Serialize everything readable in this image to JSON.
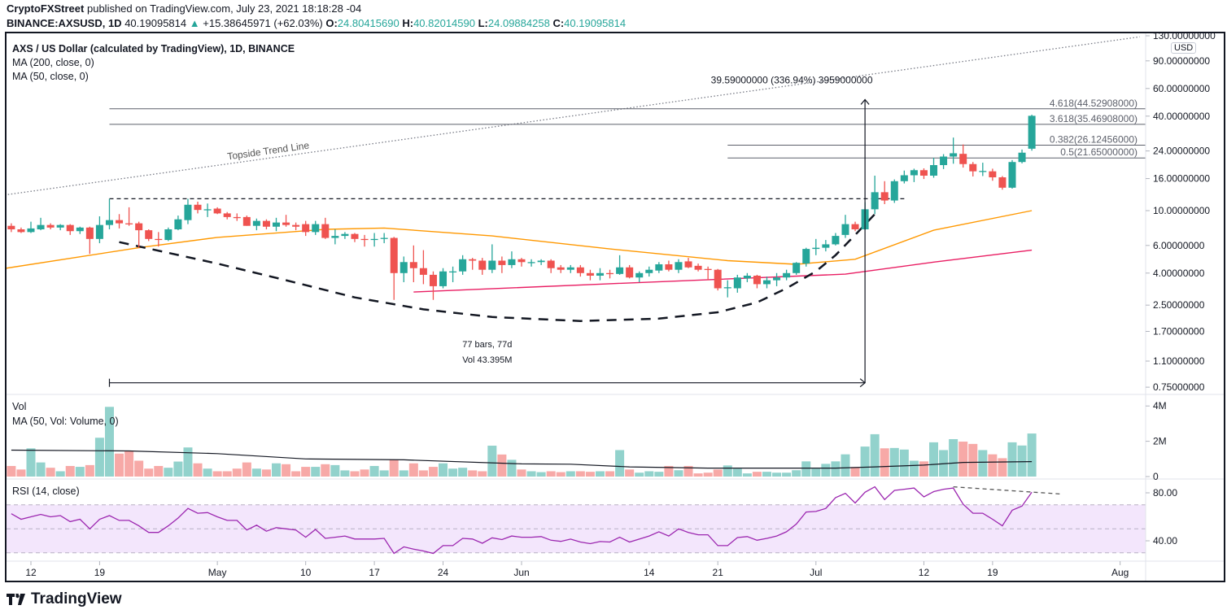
{
  "header": {
    "publisher": "CryptoFXStreet",
    "published_text": "published on TradingView.com, July 23, 2021 18:18:28 -04",
    "symbol": "BINANCE:AXSUSD, 1D",
    "last": "40.19095814",
    "change": "+15.38645971 (+62.03%)",
    "o_label": "O:",
    "o": "24.80415690",
    "h_label": "H:",
    "h": "40.82014590",
    "l_label": "L:",
    "l": "24.09884258",
    "c_label": "C:",
    "c": "40.19095814",
    "up_icon": "triangle-up-icon"
  },
  "legend": {
    "title": "AXS / US Dollar (calculated by TradingView), 1D, BINANCE",
    "ma200": "MA (200, close, 0)",
    "ma50": "MA (50, close, 0)",
    "vol": "Vol",
    "vol_ma": "MA (50, Vol: Volume, 0)",
    "rsi": "RSI (14, close)"
  },
  "currency_badge": "USD",
  "logo_text": "TradingView",
  "colors": {
    "up": "#26a69a",
    "down": "#ef5350",
    "vol_up": "#92d2cc",
    "vol_down": "#f7a9a7",
    "ma50": "#ff9800",
    "ma200": "#e91e63",
    "rsi": "#9c27b0",
    "rsi_band": "#f3e6fc"
  },
  "chart_data": {
    "type": "candlestick",
    "price_scale": "log",
    "price_axis_ticks": [
      {
        "v": 130,
        "label": "130.00000000"
      },
      {
        "v": 90,
        "label": "90.00000000"
      },
      {
        "v": 60,
        "label": "60.00000000"
      },
      {
        "v": 40,
        "label": "40.00000000"
      },
      {
        "v": 24,
        "label": "24.00000000"
      },
      {
        "v": 16,
        "label": "16.00000000"
      },
      {
        "v": 10,
        "label": "10.00000000"
      },
      {
        "v": 6,
        "label": "6.00000000"
      },
      {
        "v": 4,
        "label": "4.00000000"
      },
      {
        "v": 2.5,
        "label": "2.50000000"
      },
      {
        "v": 1.7,
        "label": "1.70000000"
      },
      {
        "v": 1.1,
        "label": "1.10000000"
      },
      {
        "v": 0.75,
        "label": "0.75000000"
      }
    ],
    "x_ticks": [
      {
        "date": "2021-04-12",
        "label": "12"
      },
      {
        "date": "2021-04-19",
        "label": "19"
      },
      {
        "date": "2021-05-01",
        "label": "May"
      },
      {
        "date": "2021-05-10",
        "label": "10"
      },
      {
        "date": "2021-05-17",
        "label": "17"
      },
      {
        "date": "2021-05-24",
        "label": "24"
      },
      {
        "date": "2021-06-01",
        "label": "Jun"
      },
      {
        "date": "2021-06-14",
        "label": "14"
      },
      {
        "date": "2021-06-21",
        "label": "21"
      },
      {
        "date": "2021-07-01",
        "label": "Jul"
      },
      {
        "date": "2021-07-12",
        "label": "12"
      },
      {
        "date": "2021-07-19",
        "label": "19"
      },
      {
        "date": "2021-08-01",
        "label": "Aug"
      }
    ],
    "candles_columns": [
      "date",
      "open",
      "high",
      "low",
      "close"
    ],
    "candles": [
      [
        "2021-04-10",
        8.0,
        8.3,
        7.3,
        7.6
      ],
      [
        "2021-04-11",
        7.6,
        7.8,
        7.2,
        7.3
      ],
      [
        "2021-04-12",
        7.3,
        8.5,
        7.2,
        7.7
      ],
      [
        "2021-04-13",
        7.6,
        9.0,
        7.5,
        8.1
      ],
      [
        "2021-04-14",
        8.1,
        8.3,
        7.6,
        7.8
      ],
      [
        "2021-04-15",
        7.8,
        8.2,
        7.5,
        8.1
      ],
      [
        "2021-04-16",
        8.1,
        8.2,
        7.0,
        7.4
      ],
      [
        "2021-04-17",
        7.4,
        7.9,
        7.1,
        7.8
      ],
      [
        "2021-04-18",
        7.8,
        7.9,
        5.3,
        6.6
      ],
      [
        "2021-04-19",
        6.6,
        9.2,
        6.2,
        8.1
      ],
      [
        "2021-04-20",
        8.1,
        11.9,
        7.6,
        8.7
      ],
      [
        "2021-04-21",
        8.7,
        9.5,
        7.7,
        8.3
      ],
      [
        "2021-04-22",
        8.3,
        10.5,
        8.0,
        8.2
      ],
      [
        "2021-04-23",
        8.3,
        8.5,
        5.8,
        7.5
      ],
      [
        "2021-04-24",
        7.5,
        7.6,
        6.4,
        6.6
      ],
      [
        "2021-04-25",
        6.6,
        7.3,
        5.9,
        6.5
      ],
      [
        "2021-04-26",
        6.5,
        7.8,
        6.4,
        7.6
      ],
      [
        "2021-04-27",
        7.6,
        9.3,
        7.5,
        8.8
      ],
      [
        "2021-04-28",
        8.7,
        11.9,
        8.2,
        10.9
      ],
      [
        "2021-04-29",
        10.9,
        11.4,
        9.6,
        10.1
      ],
      [
        "2021-04-30",
        10.1,
        11.1,
        9.1,
        10.2
      ],
      [
        "2021-05-01",
        10.3,
        10.5,
        9.5,
        9.6
      ],
      [
        "2021-05-02",
        9.6,
        9.8,
        8.8,
        9.1
      ],
      [
        "2021-05-03",
        9.1,
        9.6,
        8.6,
        9.0
      ],
      [
        "2021-05-04",
        9.1,
        9.3,
        8.0,
        8.0
      ],
      [
        "2021-05-05",
        8.0,
        8.9,
        7.5,
        8.6
      ],
      [
        "2021-05-06",
        8.6,
        8.8,
        7.6,
        7.9
      ],
      [
        "2021-05-07",
        7.9,
        9.0,
        7.4,
        8.4
      ],
      [
        "2021-05-08",
        8.4,
        9.4,
        7.9,
        8.1
      ],
      [
        "2021-05-09",
        8.1,
        8.4,
        7.5,
        7.9
      ],
      [
        "2021-05-10",
        8.2,
        8.6,
        6.9,
        7.3
      ],
      [
        "2021-05-11",
        7.3,
        8.6,
        7.0,
        8.2
      ],
      [
        "2021-05-12",
        8.2,
        9.0,
        6.6,
        6.7
      ],
      [
        "2021-05-13",
        6.7,
        7.6,
        6.1,
        6.9
      ],
      [
        "2021-05-14",
        6.9,
        7.3,
        6.6,
        7.1
      ],
      [
        "2021-05-15",
        7.1,
        7.2,
        6.3,
        6.6
      ],
      [
        "2021-05-16",
        6.6,
        7.0,
        5.9,
        6.5
      ],
      [
        "2021-05-17",
        6.5,
        7.2,
        5.9,
        6.6
      ],
      [
        "2021-05-18",
        6.6,
        7.2,
        6.2,
        6.7
      ],
      [
        "2021-05-19",
        6.7,
        6.8,
        2.7,
        4.0
      ],
      [
        "2021-05-20",
        4.0,
        5.1,
        3.5,
        4.7
      ],
      [
        "2021-05-21",
        4.7,
        6.0,
        3.5,
        4.3
      ],
      [
        "2021-05-22",
        4.3,
        5.6,
        3.4,
        3.9
      ],
      [
        "2021-05-23",
        3.9,
        4.1,
        2.7,
        3.3
      ],
      [
        "2021-05-24",
        3.3,
        4.3,
        3.2,
        4.1
      ],
      [
        "2021-05-25",
        4.1,
        4.4,
        3.5,
        4.1
      ],
      [
        "2021-05-26",
        4.1,
        5.2,
        3.9,
        4.9
      ],
      [
        "2021-05-27",
        4.9,
        5.0,
        4.2,
        4.8
      ],
      [
        "2021-05-28",
        4.8,
        5.0,
        3.9,
        4.2
      ],
      [
        "2021-05-29",
        4.2,
        6.1,
        4.0,
        4.8
      ],
      [
        "2021-05-30",
        4.8,
        5.1,
        4.0,
        4.5
      ],
      [
        "2021-05-31",
        4.5,
        5.5,
        4.3,
        4.9
      ],
      [
        "2021-06-01",
        4.9,
        5.0,
        4.4,
        4.7
      ],
      [
        "2021-06-02",
        4.7,
        4.9,
        4.4,
        4.7
      ],
      [
        "2021-06-03",
        4.7,
        4.9,
        4.5,
        4.8
      ],
      [
        "2021-06-04",
        4.8,
        4.9,
        4.0,
        4.3
      ],
      [
        "2021-06-05",
        4.35,
        4.5,
        4.0,
        4.2
      ],
      [
        "2021-06-06",
        4.2,
        4.5,
        4.0,
        4.35
      ],
      [
        "2021-06-07",
        4.35,
        4.5,
        3.8,
        4.0
      ],
      [
        "2021-06-08",
        4.0,
        4.2,
        3.6,
        3.85
      ],
      [
        "2021-06-09",
        3.85,
        4.3,
        3.6,
        4.0
      ],
      [
        "2021-06-10",
        4.0,
        4.2,
        3.7,
        3.95
      ],
      [
        "2021-06-11",
        3.95,
        5.2,
        3.9,
        4.35
      ],
      [
        "2021-06-12",
        4.35,
        4.5,
        3.7,
        3.75
      ],
      [
        "2021-06-13",
        3.75,
        4.1,
        3.5,
        4.0
      ],
      [
        "2021-06-14",
        4.0,
        4.4,
        3.8,
        4.2
      ],
      [
        "2021-06-15",
        4.15,
        4.7,
        4.0,
        4.55
      ],
      [
        "2021-06-16",
        4.55,
        4.8,
        4.1,
        4.2
      ],
      [
        "2021-06-17",
        4.2,
        4.9,
        4.0,
        4.7
      ],
      [
        "2021-06-18",
        4.75,
        5.0,
        4.3,
        4.35
      ],
      [
        "2021-06-19",
        4.45,
        4.6,
        4.1,
        4.2
      ],
      [
        "2021-06-20",
        4.25,
        4.4,
        3.6,
        4.2
      ],
      [
        "2021-06-21",
        4.2,
        4.25,
        3.1,
        3.2
      ],
      [
        "2021-06-22",
        3.2,
        3.6,
        2.8,
        3.25
      ],
      [
        "2021-06-23",
        3.2,
        3.9,
        3.0,
        3.75
      ],
      [
        "2021-06-24",
        3.7,
        4.0,
        3.5,
        3.85
      ],
      [
        "2021-06-25",
        3.85,
        3.9,
        3.2,
        3.4
      ],
      [
        "2021-06-26",
        3.4,
        3.8,
        3.2,
        3.6
      ],
      [
        "2021-06-27",
        3.6,
        4.0,
        3.3,
        3.75
      ],
      [
        "2021-06-28",
        3.75,
        4.2,
        3.6,
        4.0
      ],
      [
        "2021-06-29",
        4.0,
        4.7,
        3.9,
        4.65
      ],
      [
        "2021-06-30",
        4.6,
        5.8,
        4.4,
        5.7
      ],
      [
        "2021-07-01",
        5.7,
        6.6,
        5.2,
        5.8
      ],
      [
        "2021-07-02",
        5.8,
        6.5,
        5.5,
        6.1
      ],
      [
        "2021-07-03",
        6.1,
        7.2,
        6.0,
        6.9
      ],
      [
        "2021-07-04",
        7.0,
        9.4,
        6.7,
        8.2
      ],
      [
        "2021-07-05",
        8.2,
        8.5,
        7.4,
        7.6
      ],
      [
        "2021-07-06",
        7.6,
        11.3,
        7.5,
        10.2
      ],
      [
        "2021-07-07",
        10.2,
        16.7,
        9.5,
        13.1
      ],
      [
        "2021-07-08",
        13.1,
        15.4,
        11.0,
        11.6
      ],
      [
        "2021-07-09",
        11.6,
        15.8,
        11.2,
        15.4
      ],
      [
        "2021-07-10",
        15.4,
        18.0,
        14.9,
        16.8
      ],
      [
        "2021-07-11",
        16.8,
        18.5,
        15.2,
        18.1
      ],
      [
        "2021-07-12",
        18.1,
        18.6,
        15.9,
        16.7
      ],
      [
        "2021-07-13",
        16.7,
        21.7,
        16.2,
        19.5
      ],
      [
        "2021-07-14",
        19.5,
        22.9,
        18.4,
        22.1
      ],
      [
        "2021-07-15",
        22.1,
        29.2,
        19.9,
        23.2
      ],
      [
        "2021-07-16",
        23.0,
        26.4,
        18.8,
        19.8
      ],
      [
        "2021-07-17",
        19.8,
        20.4,
        16.5,
        17.8
      ],
      [
        "2021-07-18",
        17.8,
        20.2,
        16.6,
        17.9
      ],
      [
        "2021-07-19",
        17.8,
        18.5,
        15.5,
        16.3
      ],
      [
        "2021-07-20",
        16.3,
        16.6,
        13.6,
        14.0
      ],
      [
        "2021-07-21",
        14.0,
        21.0,
        13.8,
        20.4
      ],
      [
        "2021-07-22",
        20.4,
        24.5,
        20.0,
        23.4
      ],
      [
        "2021-07-23",
        24.8041569,
        40.8201459,
        24.09884258,
        40.19095814
      ]
    ],
    "ma50": [
      [
        "2021-04-09",
        4.25
      ],
      [
        "2021-04-23",
        5.8
      ],
      [
        "2021-05-01",
        6.75
      ],
      [
        "2021-05-12",
        7.6
      ],
      [
        "2021-05-18",
        7.75
      ],
      [
        "2021-05-29",
        6.9
      ],
      [
        "2021-06-10",
        5.7
      ],
      [
        "2021-06-22",
        4.8
      ],
      [
        "2021-06-29",
        4.55
      ],
      [
        "2021-07-05",
        4.9
      ],
      [
        "2021-07-13",
        7.5
      ],
      [
        "2021-07-23",
        10.0
      ]
    ],
    "ma200": [
      [
        "2021-05-21",
        3.03
      ],
      [
        "2021-06-09",
        3.4
      ],
      [
        "2021-07-04",
        3.94
      ],
      [
        "2021-07-13",
        4.7
      ],
      [
        "2021-07-23",
        5.6
      ]
    ],
    "volume_unit": "M",
    "volume_axis_ticks": [
      {
        "v": 4,
        "label": "4M"
      },
      {
        "v": 2,
        "label": "2M"
      },
      {
        "v": 0,
        "label": "0"
      }
    ],
    "volume": [
      0.6,
      0.4,
      1.6,
      0.8,
      0.5,
      0.3,
      0.6,
      0.55,
      0.65,
      2.2,
      3.95,
      1.3,
      1.45,
      0.9,
      0.45,
      0.6,
      0.5,
      0.85,
      1.65,
      0.75,
      0.45,
      0.3,
      0.3,
      0.45,
      0.8,
      0.45,
      0.4,
      0.75,
      0.7,
      0.3,
      0.55,
      0.55,
      0.7,
      0.65,
      0.35,
      0.3,
      0.4,
      0.6,
      0.35,
      0.95,
      0.35,
      0.75,
      0.35,
      0.55,
      0.75,
      0.45,
      0.5,
      0.35,
      0.3,
      1.75,
      1.25,
      0.95,
      0.4,
      0.3,
      0.25,
      0.3,
      0.25,
      0.3,
      0.3,
      0.27,
      0.3,
      0.3,
      1.5,
      0.4,
      0.22,
      0.3,
      0.27,
      0.6,
      0.36,
      0.6,
      0.18,
      0.22,
      0.4,
      0.63,
      0.45,
      0.18,
      0.27,
      0.27,
      0.22,
      0.22,
      0.36,
      0.86,
      0.45,
      0.72,
      0.86,
      1.26,
      0.54,
      1.7,
      2.4,
      1.6,
      1.62,
      1.53,
      0.9,
      0.86,
      1.94,
      1.5,
      2.12,
      1.98,
      1.85,
      1.5,
      1.26,
      1.04,
      1.94,
      1.76,
      2.44
    ],
    "volume_ma50": [
      [
        "2021-04-10",
        1.5
      ],
      [
        "2021-04-22",
        1.45
      ],
      [
        "2021-05-01",
        1.3
      ],
      [
        "2021-05-10",
        1.0
      ],
      [
        "2021-05-20",
        0.95
      ],
      [
        "2021-06-01",
        0.72
      ],
      [
        "2021-06-06",
        0.7
      ],
      [
        "2021-06-12",
        0.55
      ],
      [
        "2021-06-20",
        0.48
      ],
      [
        "2021-07-03",
        0.48
      ],
      [
        "2021-07-07",
        0.55
      ],
      [
        "2021-07-12",
        0.65
      ],
      [
        "2021-07-16",
        0.8
      ],
      [
        "2021-07-23",
        0.85
      ]
    ],
    "rsi_axis_ticks": [
      {
        "v": 80,
        "label": "80.00"
      },
      {
        "v": 40,
        "label": "40.00"
      }
    ],
    "rsi_bands": [
      30,
      50,
      70
    ],
    "rsi": [
      62.6,
      58,
      60,
      62,
      60,
      61,
      56,
      58,
      50,
      58,
      61,
      57,
      57,
      52.5,
      47,
      47,
      52.5,
      59,
      67,
      63,
      63.5,
      60,
      57,
      57,
      49,
      53,
      48,
      51,
      50,
      49,
      43,
      49.5,
      42,
      43,
      44,
      41.5,
      41.5,
      41.5,
      42,
      29.5,
      35,
      33,
      31.5,
      29.5,
      36,
      36,
      42,
      41.5,
      38,
      42.5,
      41,
      44,
      43,
      43,
      43.5,
      40.5,
      39.5,
      41.4,
      39,
      37.6,
      39.4,
      39,
      43,
      39,
      41.4,
      44,
      47.5,
      44,
      50,
      47,
      45,
      45,
      36,
      36,
      42.7,
      43.5,
      40.5,
      42,
      44,
      47.5,
      54,
      64,
      64.5,
      67,
      76,
      79.6,
      71.5,
      80.5,
      85,
      74.4,
      82,
      83,
      84,
      76.6,
      81,
      83,
      84,
      70.5,
      63,
      63,
      58,
      52.5,
      65.5,
      69,
      80.5
    ],
    "annotations": {
      "topside_trend_line": {
        "label": "Topside Trend Line",
        "from": [
          "2021-04-09",
          12.5
        ],
        "to": [
          "2021-08-03",
          128
        ]
      },
      "resistance_line": {
        "price": 11.9,
        "from": "2021-04-20",
        "to": "2021-07-10"
      },
      "cup_curve": [
        [
          "2021-04-21",
          6.3
        ],
        [
          "2021-05-01",
          4.6
        ],
        [
          "2021-05-08",
          3.6
        ],
        [
          "2021-05-15",
          2.8
        ],
        [
          "2021-05-22",
          2.35
        ],
        [
          "2021-05-29",
          2.1
        ],
        [
          "2021-06-07",
          1.98
        ],
        [
          "2021-06-15",
          2.05
        ],
        [
          "2021-06-21",
          2.25
        ],
        [
          "2021-06-25",
          2.6
        ],
        [
          "2021-06-28",
          3.2
        ],
        [
          "2021-07-01",
          4.1
        ],
        [
          "2021-07-03",
          5.2
        ],
        [
          "2021-07-05",
          7.0
        ],
        [
          "2021-07-07",
          9.5
        ]
      ],
      "fib_levels": [
        {
          "label": "4.618(44.52908000)",
          "price": 44.52908,
          "from": "2021-04-20"
        },
        {
          "label": "3.618(35.46908000)",
          "price": 35.46908,
          "from": "2021-04-20"
        },
        {
          "label": "0.382(26.12456000)",
          "price": 26.12456,
          "from": "2021-06-22"
        },
        {
          "label": "0.5(21.65000000)",
          "price": 21.65,
          "from": "2021-06-22"
        }
      ],
      "measure": {
        "price_label": "39.59000000 (336.94%) 3959000000",
        "bars_label": "77 bars, 77d",
        "vol_label": "Vol 43.395M",
        "from_date": "2021-04-20",
        "to_date": "2021-07-06",
        "low": 0.8,
        "high": 51
      },
      "rsi_divergence": {
        "from": [
          "2021-07-15",
          85
        ],
        "to": [
          "2021-07-26",
          79
        ]
      }
    }
  }
}
